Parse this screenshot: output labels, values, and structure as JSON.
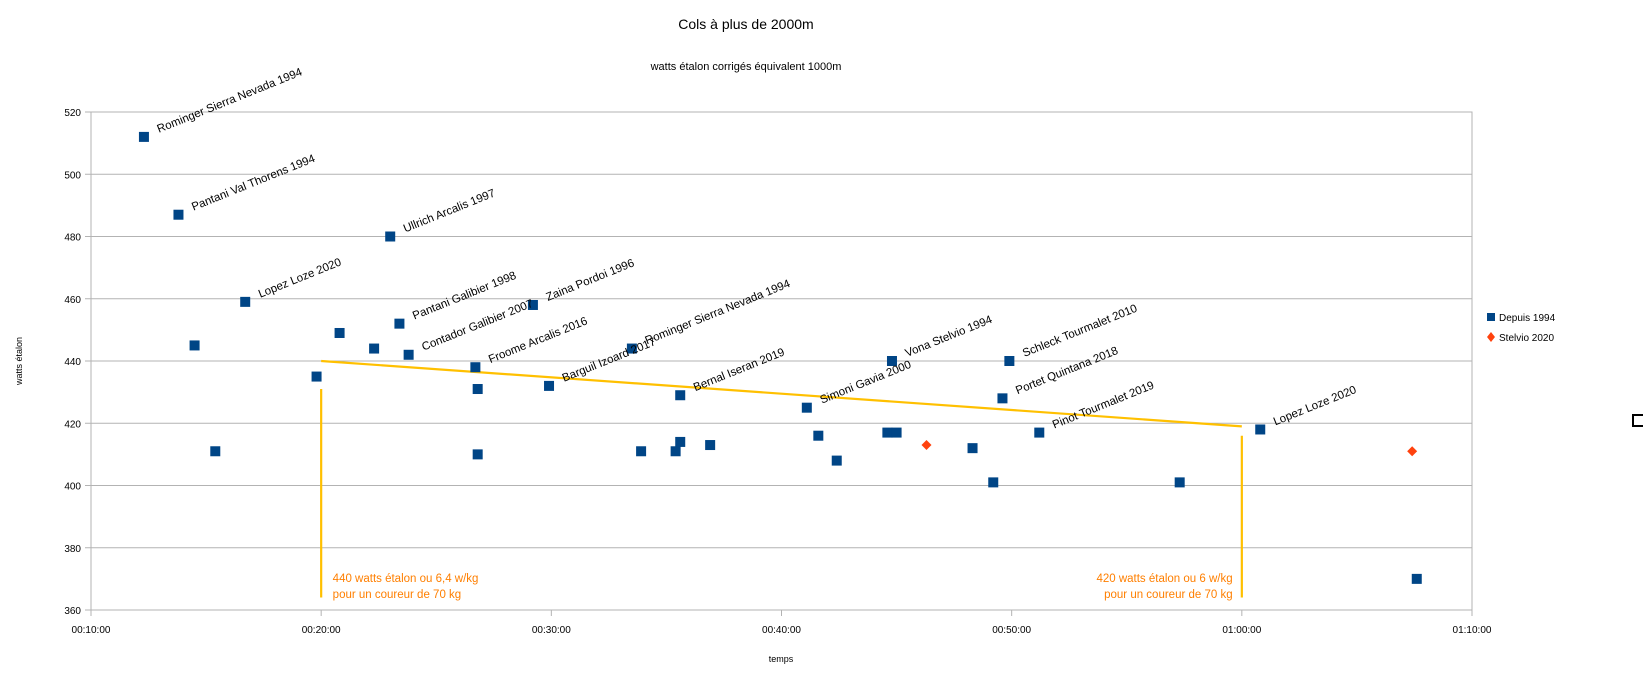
{
  "chart_data": {
    "type": "scatter",
    "title": "Cols à plus de 2000m",
    "subtitle": "watts étalon corrigés équivalent 1000m",
    "xlabel": "temps",
    "ylabel": "watts étalon",
    "x_unit": "minutes",
    "xlim": [
      10,
      70
    ],
    "ylim": [
      360,
      520
    ],
    "x_ticks": [
      {
        "value": 10,
        "label": "00:10:00"
      },
      {
        "value": 20,
        "label": "00:20:00"
      },
      {
        "value": 30,
        "label": "00:30:00"
      },
      {
        "value": 40,
        "label": "00:40:00"
      },
      {
        "value": 50,
        "label": "00:50:00"
      },
      {
        "value": 60,
        "label": "01:00:00"
      },
      {
        "value": 70,
        "label": "01:10:00"
      }
    ],
    "y_ticks": [
      360,
      380,
      400,
      420,
      440,
      460,
      480,
      500,
      520
    ],
    "grid": "horizontal",
    "legend_position": "right",
    "series": [
      {
        "name": "Depuis 1994",
        "color": "#004586",
        "marker": "square",
        "points": [
          {
            "x": 12.3,
            "y": 512,
            "label": "Rominger Sierra Nevada 1994"
          },
          {
            "x": 13.8,
            "y": 487,
            "label": "Pantani Val Thorens 1994"
          },
          {
            "x": 14.5,
            "y": 445
          },
          {
            "x": 15.4,
            "y": 411
          },
          {
            "x": 16.7,
            "y": 459,
            "label": "Lopez Loze 2020"
          },
          {
            "x": 19.8,
            "y": 435
          },
          {
            "x": 20.8,
            "y": 449
          },
          {
            "x": 23.0,
            "y": 480,
            "label": "Ullrich Arcalis 1997"
          },
          {
            "x": 22.3,
            "y": 444
          },
          {
            "x": 23.4,
            "y": 452,
            "label": "Pantani Galibier 1998"
          },
          {
            "x": 23.8,
            "y": 442,
            "label": "Contador Galibier 2007"
          },
          {
            "x": 26.7,
            "y": 438,
            "label": "Froome Arcalis 2016"
          },
          {
            "x": 26.8,
            "y": 431
          },
          {
            "x": 26.8,
            "y": 410
          },
          {
            "x": 29.2,
            "y": 458,
            "label": "Zaina Pordoi 1996"
          },
          {
            "x": 29.9,
            "y": 432,
            "label": "Barguil Izoard 2017"
          },
          {
            "x": 33.5,
            "y": 444,
            "label": "Rominger Sierra Nevada 1994"
          },
          {
            "x": 33.9,
            "y": 411
          },
          {
            "x": 35.4,
            "y": 411
          },
          {
            "x": 35.6,
            "y": 414
          },
          {
            "x": 35.6,
            "y": 429,
            "label": "Bernal Iseran 2019"
          },
          {
            "x": 36.9,
            "y": 413
          },
          {
            "x": 41.1,
            "y": 425,
            "label": "Simoni Gavia 2000"
          },
          {
            "x": 41.6,
            "y": 416
          },
          {
            "x": 42.4,
            "y": 408
          },
          {
            "x": 44.6,
            "y": 417
          },
          {
            "x": 44.8,
            "y": 440,
            "label": "Vona Stelvio 1994"
          },
          {
            "x": 45.0,
            "y": 417
          },
          {
            "x": 48.3,
            "y": 412
          },
          {
            "x": 49.2,
            "y": 401
          },
          {
            "x": 49.6,
            "y": 428,
            "label": "Portet Quintana 2018"
          },
          {
            "x": 49.9,
            "y": 440,
            "label": "Schleck Tourmalet 2010"
          },
          {
            "x": 51.2,
            "y": 417,
            "label": "Pinot Tourmalet 2019"
          },
          {
            "x": 57.3,
            "y": 401
          },
          {
            "x": 60.8,
            "y": 418,
            "label": "Lopez Loze 2020"
          },
          {
            "x": 67.6,
            "y": 370
          }
        ]
      },
      {
        "name": "Stelvio 2020",
        "color": "#ff420e",
        "marker": "diamond",
        "points": [
          {
            "x": 46.3,
            "y": 413
          },
          {
            "x": 67.4,
            "y": 411
          }
        ]
      }
    ],
    "annotations": {
      "line_color": "#ffc000",
      "trend_line": {
        "from": {
          "x": 20,
          "y": 440
        },
        "to": {
          "x": 60,
          "y": 419
        }
      },
      "verticals": [
        {
          "x": 20,
          "y_top": 431,
          "y_bottom": 364
        },
        {
          "x": 60,
          "y_top": 416,
          "y_bottom": 364
        }
      ],
      "notes": [
        {
          "lines": [
            "440 watts étalon ou 6,4 w/kg",
            "pour un coureur de 70 kg"
          ],
          "x": 20.5,
          "y": 369,
          "anchor": "start"
        },
        {
          "lines": [
            "420 watts étalon ou 6 w/kg",
            "pour un   coureur de 70 kg"
          ],
          "x": 59.6,
          "y": 369,
          "anchor": "end"
        }
      ],
      "note_color": "#ff7f00"
    }
  }
}
